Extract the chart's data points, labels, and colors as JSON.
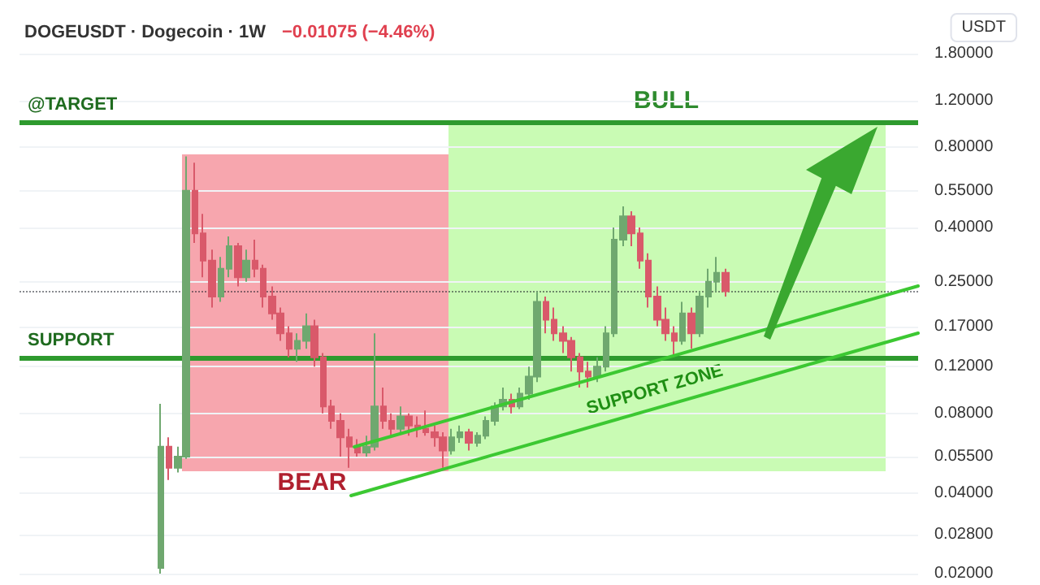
{
  "chart_data": {
    "type": "candlestick",
    "title": "DOGEUSDT · Dogecoin · 1W",
    "subtitle": "−0.01075 (−4.46%)",
    "ylabel": "USDT",
    "categories": [
      null,
      null,
      null,
      null,
      null,
      null,
      null,
      null,
      null,
      null,
      null,
      null,
      null,
      null,
      null,
      null,
      null,
      null,
      null,
      null,
      null,
      null,
      null,
      null,
      null,
      null,
      null,
      null,
      null,
      null,
      null,
      null,
      null,
      null,
      null,
      null,
      null,
      null,
      null,
      null,
      null,
      null,
      null,
      null,
      null,
      null,
      null,
      null,
      null,
      null,
      null,
      null,
      null,
      null,
      null,
      null,
      null,
      null,
      null,
      null,
      null,
      null,
      null,
      null,
      null,
      null,
      null,
      null,
      null,
      null,
      null,
      null,
      null,
      null,
      null,
      null,
      null,
      null,
      null,
      null,
      null,
      null,
      null,
      null,
      null,
      null,
      null,
      null,
      null,
      null,
      null,
      null,
      null,
      null,
      null,
      null,
      null,
      null,
      null,
      null,
      null,
      null,
      null,
      null,
      null
    ],
    "ohlc": [
      null,
      null,
      null,
      null,
      null,
      null,
      null,
      null,
      null,
      null,
      null,
      null,
      null,
      null,
      null,
      null,
      [
        0.021,
        0.087,
        0.02,
        0.06
      ],
      [
        0.06,
        0.065,
        0.045,
        0.05
      ],
      [
        0.05,
        0.06,
        0.048,
        0.055
      ],
      [
        0.055,
        0.74,
        0.054,
        0.55
      ],
      [
        0.55,
        0.7,
        0.35,
        0.38
      ],
      [
        0.38,
        0.45,
        0.26,
        0.3
      ],
      [
        0.3,
        0.33,
        0.2,
        0.22
      ],
      [
        0.22,
        0.31,
        0.21,
        0.28
      ],
      [
        0.28,
        0.37,
        0.26,
        0.34
      ],
      [
        0.34,
        0.35,
        0.24,
        0.26
      ],
      [
        0.26,
        0.33,
        0.25,
        0.3
      ],
      [
        0.3,
        0.36,
        0.26,
        0.28
      ],
      [
        0.28,
        0.29,
        0.2,
        0.22
      ],
      [
        0.22,
        0.24,
        0.18,
        0.19
      ],
      [
        0.19,
        0.2,
        0.15,
        0.16
      ],
      [
        0.16,
        0.17,
        0.13,
        0.14
      ],
      [
        0.14,
        0.16,
        0.125,
        0.15
      ],
      [
        0.15,
        0.19,
        0.14,
        0.17
      ],
      [
        0.17,
        0.18,
        0.12,
        0.13
      ],
      [
        0.13,
        0.135,
        0.08,
        0.085
      ],
      [
        0.085,
        0.09,
        0.07,
        0.075
      ],
      [
        0.075,
        0.08,
        0.055,
        0.065
      ],
      [
        0.065,
        0.07,
        0.05,
        0.06
      ],
      [
        0.06,
        0.064,
        0.055,
        0.057
      ],
      [
        0.057,
        0.066,
        0.055,
        0.06
      ],
      [
        0.06,
        0.16,
        0.058,
        0.085
      ],
      [
        0.085,
        0.1,
        0.07,
        0.075
      ],
      [
        0.075,
        0.08,
        0.065,
        0.07
      ],
      [
        0.07,
        0.085,
        0.068,
        0.078
      ],
      [
        0.078,
        0.08,
        0.066,
        0.072
      ],
      [
        0.072,
        0.078,
        0.065,
        0.07
      ],
      [
        0.07,
        0.082,
        0.066,
        0.068
      ],
      [
        0.068,
        0.072,
        0.06,
        0.065
      ],
      [
        0.065,
        0.068,
        0.05,
        0.058
      ],
      [
        0.058,
        0.07,
        0.056,
        0.065
      ],
      [
        0.065,
        0.072,
        0.062,
        0.068
      ],
      [
        0.068,
        0.07,
        0.058,
        0.062
      ],
      [
        0.062,
        0.068,
        0.06,
        0.066
      ],
      [
        0.066,
        0.078,
        0.064,
        0.075
      ],
      [
        0.075,
        0.088,
        0.072,
        0.085
      ],
      [
        0.085,
        0.1,
        0.082,
        0.09
      ],
      [
        0.09,
        0.095,
        0.08,
        0.085
      ],
      [
        0.085,
        0.1,
        0.083,
        0.095
      ],
      [
        0.095,
        0.12,
        0.09,
        0.11
      ],
      [
        0.11,
        0.23,
        0.105,
        0.21
      ],
      [
        0.21,
        0.22,
        0.16,
        0.18
      ],
      [
        0.18,
        0.2,
        0.15,
        0.16
      ],
      [
        0.16,
        0.17,
        0.135,
        0.15
      ],
      [
        0.15,
        0.155,
        0.115,
        0.13
      ],
      [
        0.13,
        0.135,
        0.1,
        0.115
      ],
      [
        0.115,
        0.125,
        0.1,
        0.11
      ],
      [
        0.11,
        0.13,
        0.105,
        0.12
      ],
      [
        0.12,
        0.17,
        0.115,
        0.16
      ],
      [
        0.16,
        0.4,
        0.155,
        0.36
      ],
      [
        0.36,
        0.48,
        0.34,
        0.44
      ],
      [
        0.44,
        0.46,
        0.34,
        0.38
      ],
      [
        0.38,
        0.4,
        0.28,
        0.3
      ],
      [
        0.3,
        0.32,
        0.2,
        0.22
      ],
      [
        0.22,
        0.24,
        0.17,
        0.18
      ],
      [
        0.18,
        0.2,
        0.15,
        0.16
      ],
      [
        0.16,
        0.17,
        0.13,
        0.15
      ],
      [
        0.15,
        0.21,
        0.145,
        0.19
      ],
      [
        0.19,
        0.2,
        0.14,
        0.16
      ],
      [
        0.16,
        0.23,
        0.155,
        0.22
      ],
      [
        0.22,
        0.28,
        0.2,
        0.25
      ],
      [
        0.25,
        0.31,
        0.23,
        0.27
      ],
      [
        0.27,
        0.28,
        0.22,
        0.23036
      ],
      null,
      null,
      null,
      null,
      null,
      null,
      null,
      null,
      null,
      null,
      null,
      null,
      null,
      null,
      null,
      null,
      null,
      null,
      null,
      null,
      null,
      null
    ],
    "colors": [
      null,
      null,
      null,
      null,
      null,
      null,
      null,
      null,
      null,
      null,
      null,
      null,
      null,
      null,
      null,
      null,
      "#6fa86f",
      "#d9596a",
      "#6fa86f",
      "#6fa86f",
      "#d9596a",
      "#d9596a",
      "#d9596a",
      "#6fa86f",
      "#6fa86f",
      "#d9596a",
      "#6fa86f",
      "#d9596a",
      "#d9596a",
      "#d9596a",
      "#d9596a",
      "#d9596a",
      "#6fa86f",
      "#6fa86f",
      "#d9596a",
      "#d9596a",
      "#d9596a",
      "#d9596a",
      "#d9596a",
      "#d9596a",
      "#6fa86f",
      "#6fa86f",
      "#d9596a",
      "#d9596a",
      "#6fa86f",
      "#d9596a",
      "#d9596a",
      "#d9596a",
      "#d9596a",
      "#d9596a",
      "#6fa86f",
      "#6fa86f",
      "#d9596a",
      "#6fa86f",
      "#6fa86f",
      "#6fa86f",
      "#6fa86f",
      "#d9596a",
      "#6fa86f",
      "#6fa86f",
      "#6fa86f",
      "#d9596a",
      "#d9596a",
      "#d9596a",
      "#d9596a",
      "#d9596a",
      "#d9596a",
      "#6fa86f",
      "#6fa86f",
      "#6fa86f",
      "#6fa86f",
      "#d9596a",
      "#d9596a",
      "#d9596a",
      "#d9596a",
      "#d9596a",
      "#d9596a",
      "#6fa86f",
      "#d9596a",
      "#6fa86f",
      "#6fa86f",
      "#6fa86f",
      "#d9596a",
      null,
      null,
      null,
      null,
      null,
      null,
      null,
      null,
      null,
      null,
      null,
      null,
      null,
      null,
      null,
      null,
      null,
      null,
      null,
      null,
      null,
      null
    ],
    "ylim": [
      0.02,
      1.8
    ],
    "log": true,
    "yticks": [
      {
        "value": 1.8,
        "label": "1.80000"
      },
      {
        "value": 1.2,
        "label": "1.20000"
      },
      {
        "value": 0.8,
        "label": "0.80000"
      },
      {
        "value": 0.55,
        "label": "0.55000"
      },
      {
        "value": 0.4,
        "label": "0.40000"
      },
      {
        "value": 0.25,
        "label": "0.25000"
      },
      {
        "value": 0.17,
        "label": "0.17000"
      },
      {
        "value": 0.12,
        "label": "0.12000"
      },
      {
        "value": 0.08,
        "label": "0.08000"
      },
      {
        "value": 0.055,
        "label": "0.05500"
      },
      {
        "value": 0.04,
        "label": "0.04000"
      },
      {
        "value": 0.028,
        "label": "0.02800"
      },
      {
        "value": 0.02,
        "label": "0.02000"
      }
    ],
    "tick_labels": "y",
    "grid": "y",
    "ref_lines": [
      {
        "axis": "y",
        "value": 1.0,
        "label": "@TARGET",
        "color": "#2e9a2e",
        "line_style": "solid"
      },
      {
        "axis": "y",
        "value": 0.13137,
        "label": "SUPPORT",
        "color": "#2e9a2e",
        "line_style": "solid"
      },
      {
        "axis": "y",
        "value": 0.23036,
        "label": null,
        "color": "#131722",
        "line_style": "dotted"
      }
    ],
    "annotations": [
      "BEAR",
      "BULL",
      "SUPPORT ZONE"
    ]
  }
}
